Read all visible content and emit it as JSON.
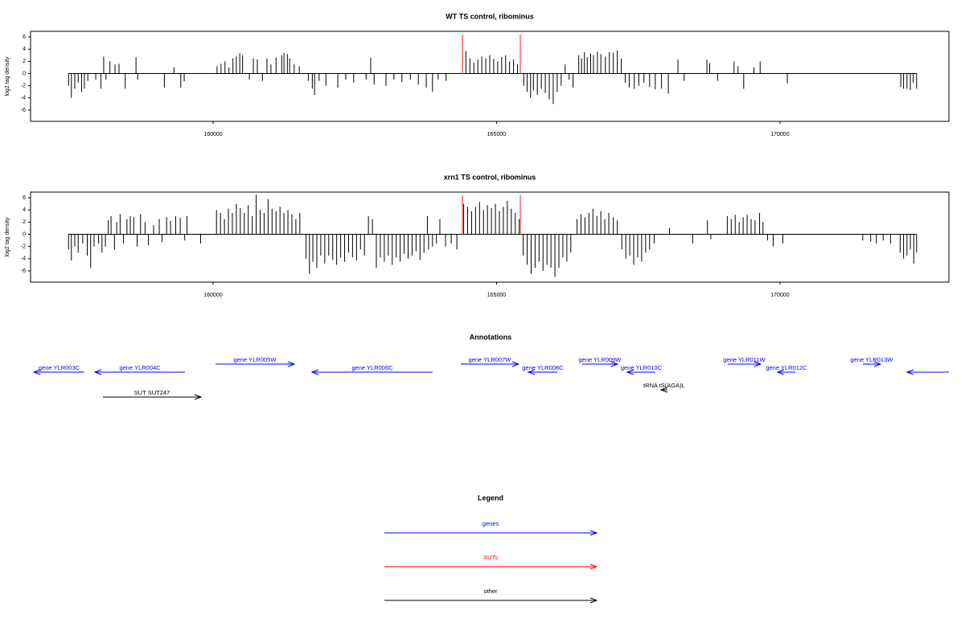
{
  "chart_data": [
    {
      "type": "bar",
      "title": "WT TS control, ribominus",
      "ylabel": "log2 tag density",
      "color": "#000000",
      "xlim": [
        156780,
        172980
      ],
      "ylim": [
        -7.85,
        6.93
      ],
      "xticks": [
        160000,
        165000,
        170000
      ],
      "yticks": [
        -6,
        -4,
        -2,
        0,
        2,
        4,
        6
      ],
      "highlights": {
        "color": "#ff6666",
        "x": [
          164400,
          165420
        ]
      },
      "x": [
        157450,
        157500,
        157560,
        157620,
        157680,
        157730,
        157790,
        157930,
        158020,
        158070,
        158110,
        158180,
        158270,
        158340,
        158450,
        158640,
        158670,
        159140,
        159310,
        159430,
        159490,
        160070,
        160140,
        160210,
        160280,
        160350,
        160410,
        160470,
        160520,
        160640,
        160710,
        160780,
        160870,
        160950,
        161020,
        161110,
        161210,
        161250,
        161310,
        161350,
        161430,
        161520,
        161680,
        161750,
        161790,
        161870,
        161990,
        162200,
        162340,
        162480,
        162700,
        162780,
        162840,
        163050,
        163190,
        163330,
        163480,
        163620,
        163760,
        163870,
        163970,
        164110,
        164460,
        164530,
        164600,
        164670,
        164740,
        164810,
        164880,
        164950,
        165020,
        165090,
        165160,
        165230,
        165300,
        165370,
        165480,
        165540,
        165600,
        165650,
        165720,
        165790,
        165860,
        165930,
        166000,
        166070,
        166140,
        166210,
        166280,
        166350,
        166450,
        166500,
        166550,
        166600,
        166660,
        166710,
        166780,
        166840,
        166920,
        166990,
        167060,
        167130,
        167200,
        167270,
        167340,
        167430,
        167510,
        167600,
        167700,
        167800,
        167910,
        168030,
        168200,
        168310,
        168710,
        168760,
        168900,
        169190,
        169260,
        169360,
        169540,
        169650,
        170130,
        172130,
        172180,
        172240,
        172300,
        172350,
        172410
      ],
      "values": [
        -2,
        -4,
        -2.5,
        -1.5,
        -3,
        -2.5,
        -1.2,
        -1,
        -2.5,
        2.8,
        -1,
        2,
        1.5,
        1.6,
        -2.5,
        2.7,
        -1,
        -2.3,
        1,
        -2.3,
        -1.3,
        1.2,
        1.6,
        2,
        1,
        2.5,
        2.8,
        3.3,
        3,
        -1,
        2.5,
        2.3,
        -1.2,
        2.5,
        1.5,
        2.6,
        3,
        3.4,
        3.2,
        2.5,
        1.5,
        1.2,
        -1.2,
        -2.5,
        -3.5,
        -1.2,
        -2,
        -2.3,
        -1,
        -1.5,
        -1,
        2.6,
        -1.8,
        -2,
        -1,
        -1.4,
        -1,
        -1.8,
        -2.3,
        -3,
        -1,
        -1.2,
        3.7,
        2.5,
        1.8,
        2.3,
        2.8,
        2.5,
        3,
        2.4,
        2,
        2.7,
        3,
        2,
        2.3,
        1.5,
        -2,
        -3,
        -4,
        -2.8,
        -3.5,
        -2.5,
        -3.2,
        -4.2,
        -5,
        -3,
        -2,
        1.5,
        -1,
        -2.3,
        3,
        2.5,
        3.5,
        2.7,
        3.3,
        3,
        3.6,
        3.2,
        2.8,
        3.5,
        3.4,
        3.8,
        2.5,
        -1.5,
        -2.3,
        -2.5,
        -2,
        -1.5,
        -2.2,
        -2.6,
        -2.5,
        -3.3,
        2.3,
        -1.2,
        2.3,
        1.7,
        -1.2,
        2,
        1.2,
        -2.5,
        1,
        2,
        -1.6,
        -2.2,
        -2.5,
        -2.5,
        -2.7,
        -1.5,
        -2.5
      ]
    },
    {
      "type": "bar",
      "title": "xrn1 TS control, ribominus",
      "ylabel": "log2 tag density",
      "color": "#000000",
      "xlim": [
        156780,
        172980
      ],
      "ylim": [
        -7.85,
        6.93
      ],
      "xticks": [
        160000,
        165000,
        170000
      ],
      "yticks": [
        -6,
        -4,
        -2,
        0,
        2,
        4,
        6
      ],
      "highlights": {
        "color": "#ff6666",
        "x": [
          164400,
          165420
        ]
      },
      "x": [
        157450,
        157500,
        157560,
        157620,
        157700,
        157780,
        157840,
        157900,
        157980,
        158040,
        158100,
        158150,
        158200,
        158260,
        158300,
        158360,
        158420,
        158480,
        158540,
        158600,
        158660,
        158720,
        158800,
        158860,
        158950,
        159050,
        159100,
        159180,
        159250,
        159340,
        159420,
        159500,
        159540,
        159780,
        160060,
        160130,
        160200,
        160270,
        160340,
        160410,
        160480,
        160550,
        160620,
        160690,
        160760,
        160830,
        160900,
        160970,
        161040,
        161110,
        161180,
        161250,
        161320,
        161390,
        161460,
        161530,
        161640,
        161700,
        161760,
        161830,
        161900,
        161970,
        162040,
        162110,
        162180,
        162250,
        162320,
        162390,
        162460,
        162530,
        162600,
        162670,
        162740,
        162810,
        162880,
        162950,
        163020,
        163090,
        163160,
        163230,
        163300,
        163370,
        163440,
        163510,
        163580,
        163650,
        163720,
        163780,
        163800,
        163870,
        163940,
        164000,
        164100,
        164200,
        164300,
        164420,
        164490,
        164560,
        164630,
        164700,
        164770,
        164840,
        164910,
        164980,
        165050,
        165120,
        165190,
        165260,
        165330,
        165400,
        165470,
        165540,
        165610,
        165680,
        165750,
        165820,
        165890,
        165960,
        166030,
        166100,
        166170,
        166240,
        166310,
        166420,
        166490,
        166560,
        166630,
        166700,
        166770,
        166840,
        166910,
        166980,
        167060,
        167130,
        167210,
        167280,
        167350,
        167420,
        167490,
        167560,
        167630,
        167700,
        167780,
        168050,
        168460,
        168720,
        168780,
        169070,
        169140,
        169210,
        169280,
        169350,
        169420,
        169490,
        169560,
        169640,
        169700,
        169780,
        169880,
        170050,
        171460,
        171600,
        171700,
        171820,
        171950,
        172120,
        172180,
        172240,
        172300,
        172360,
        172410
      ],
      "values": [
        -2.5,
        -4.3,
        -2,
        -3,
        -1.5,
        -3.5,
        -5.5,
        -2,
        -1.5,
        -3,
        -2,
        2.3,
        3,
        -2.5,
        2,
        3.3,
        -1.5,
        2.5,
        3,
        2.8,
        -2,
        3.3,
        2,
        -1.8,
        1.5,
        2.5,
        -1.3,
        2.8,
        2.2,
        3,
        2.7,
        -1,
        3,
        -1.5,
        4,
        3.5,
        2.5,
        4.2,
        3.5,
        5,
        4.3,
        3.5,
        4.8,
        3,
        6.5,
        4,
        3.5,
        5.8,
        4.2,
        3.8,
        4.5,
        3.5,
        4,
        3.3,
        2.5,
        3.5,
        -4,
        -6.5,
        -4.5,
        -5.5,
        -3.5,
        -4.8,
        -3.5,
        -4.2,
        -5,
        -3.8,
        -4.5,
        -3,
        -3.8,
        -4.3,
        -2.5,
        -3.5,
        3,
        2.5,
        -5.5,
        -3.8,
        -4.5,
        -3.5,
        -5,
        -3.8,
        -4.5,
        -3.2,
        -4,
        -3.5,
        -2.8,
        -4.2,
        -3,
        3,
        -2.5,
        -2,
        -1.5,
        2.5,
        -2,
        -1.5,
        -2.5,
        5,
        4.5,
        3.8,
        4.5,
        5.3,
        4,
        4.8,
        4.3,
        5,
        3.8,
        4.5,
        5.5,
        4.2,
        3.5,
        2.5,
        -3.5,
        -5,
        -6.5,
        -5.5,
        -4.5,
        -6,
        -5,
        -5.5,
        -7,
        -5.5,
        -3.8,
        -4.5,
        -3,
        2.5,
        3.3,
        2.8,
        3.5,
        4.2,
        3,
        3.8,
        2.5,
        3.5,
        2.8,
        2.3,
        -2.5,
        -4,
        -3.5,
        -5,
        -3.8,
        -4.5,
        -3,
        -2.5,
        -1.5,
        1,
        -1.5,
        2.3,
        -0.8,
        3,
        2.5,
        3.2,
        2,
        2.8,
        3.2,
        2.5,
        2.3,
        3.5,
        2,
        -1,
        -2,
        -1.5,
        -1,
        -1.2,
        -1.5,
        -1,
        -1.5,
        -3,
        -4,
        -3.5,
        -2.5,
        -4.8,
        -3
      ]
    }
  ],
  "annotations": {
    "title": "Annotations",
    "items": [
      {
        "label": "gene YLR003C",
        "start": 156837,
        "end": 157730,
        "direction": "left",
        "color": "#0000ff"
      },
      {
        "label": "gene YLR004C",
        "start": 157915,
        "end": 159504,
        "direction": "left",
        "color": "#0000ff"
      },
      {
        "label": "gene YLR005W",
        "start": 160043,
        "end": 161433,
        "direction": "right",
        "color": "#0000ff"
      },
      {
        "label": "gene YLR006C",
        "start": 161745,
        "end": 163872,
        "direction": "left",
        "color": "#0000ff"
      },
      {
        "label": "gene YLR007W",
        "start": 164369,
        "end": 165390,
        "direction": "right",
        "color": "#0000ff"
      },
      {
        "label": "gene YLR008C",
        "start": 165560,
        "end": 166071,
        "direction": "left",
        "color": "#0000ff"
      },
      {
        "label": "gene YLR009W",
        "start": 166510,
        "end": 167134,
        "direction": "right",
        "color": "#0000ff"
      },
      {
        "label": "gene YLR010C",
        "start": 167305,
        "end": 167801,
        "direction": "left",
        "color": "#0000ff"
      },
      {
        "label": "gene YLR011W",
        "start": 169078,
        "end": 169659,
        "direction": "right",
        "color": "#0000ff"
      },
      {
        "label": "gene YLR012C",
        "start": 169957,
        "end": 170269,
        "direction": "left",
        "color": "#0000ff"
      },
      {
        "label": "gene YLR013W",
        "start": 171461,
        "end": 171773,
        "direction": "right",
        "color": "#0000ff"
      },
      {
        "label": null,
        "start": 172241,
        "end": 172979,
        "direction": "left",
        "color": "#0000ff"
      },
      {
        "label": "SUT SUT247",
        "start": 158057,
        "end": 159787,
        "direction": "right",
        "color": "#000000"
      },
      {
        "label": "tRNA tS(AGA)L",
        "start": 167900,
        "end": 168014,
        "direction": "left",
        "color": "#000000"
      }
    ]
  },
  "legend": {
    "title": "Legend",
    "items": [
      {
        "label": "genes",
        "color": "#0000ff"
      },
      {
        "label": "XUTs",
        "color": "#ff0000"
      },
      {
        "label": "other",
        "color": "#000000"
      }
    ]
  }
}
